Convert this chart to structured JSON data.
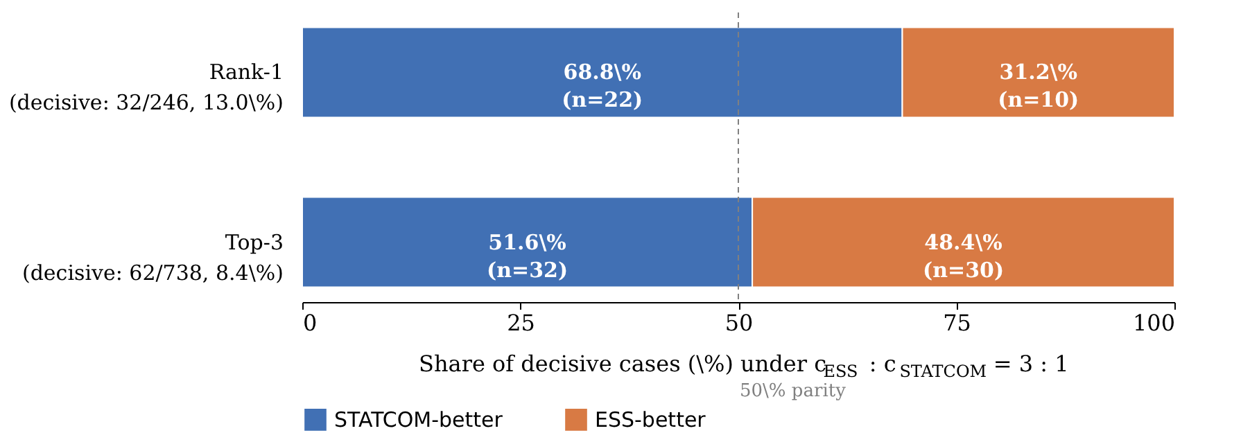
{
  "chart_data": {
    "type": "bar",
    "orientation": "horizontal",
    "stacked": true,
    "categories": [
      "Rank-1\n(decisive: 32/246, 13.0\\%)",
      "Top-3\n(decisive: 62/738, 8.4\\%)"
    ],
    "series": [
      {
        "name": "STATCOM-better",
        "color": "#4170b4",
        "values": [
          68.8,
          51.6
        ],
        "value_labels": [
          "68.8\\%\n(n=22)",
          "51.6\\%\n(n=32)"
        ]
      },
      {
        "name": "ESS-better",
        "color": "#d87a44",
        "values": [
          31.2,
          48.4
        ],
        "value_labels": [
          "31.2\\%\n(n=10)",
          "48.4\\%\n(n=30)"
        ]
      }
    ],
    "xlabel": "Share of decisive cases (\\%) under c$_{ESS}$ : c$_{STATCOM}$ = 3 : 1",
    "xlim": [
      0,
      100
    ],
    "xticks": [
      0,
      25,
      50,
      75,
      100
    ],
    "ref_lines": [
      {
        "axis": "x",
        "value": 50,
        "color": "#808080",
        "line_style": "dashed"
      }
    ],
    "annotations": [
      "50\\% parity"
    ],
    "grid": false,
    "legend": "bottom"
  }
}
